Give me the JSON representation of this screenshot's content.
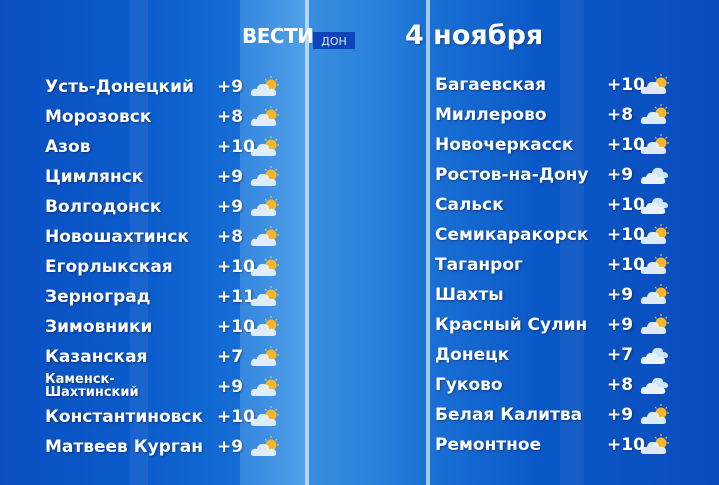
{
  "header": {
    "logo": "ВЕСТИ",
    "logo_sub": "ДОН",
    "date": "4 ноября"
  },
  "left": [
    {
      "city": "Усть-Донецкий",
      "temp": "+9",
      "icon": "partly-cloudy-icon"
    },
    {
      "city": "Морозовск",
      "temp": "+8",
      "icon": "partly-cloudy-icon"
    },
    {
      "city": "Азов",
      "temp": "+10",
      "icon": "partly-cloudy-icon"
    },
    {
      "city": "Цимлянск",
      "temp": "+9",
      "icon": "partly-cloudy-icon"
    },
    {
      "city": "Волгодонск",
      "temp": "+9",
      "icon": "partly-cloudy-icon"
    },
    {
      "city": "Новошахтинск",
      "temp": "+8",
      "icon": "partly-cloudy-icon"
    },
    {
      "city": "Егорлыкская",
      "temp": "+10",
      "icon": "partly-cloudy-icon"
    },
    {
      "city": "Зерноград",
      "temp": "+11",
      "icon": "partly-cloudy-icon"
    },
    {
      "city": "Зимовники",
      "temp": "+10",
      "icon": "partly-cloudy-icon"
    },
    {
      "city": "Казанская",
      "temp": "+7",
      "icon": "partly-cloudy-icon"
    },
    {
      "city": "Каменск-Шахтинский",
      "temp": "+9",
      "icon": "partly-cloudy-icon"
    },
    {
      "city": "Константиновск",
      "temp": "+10",
      "icon": "partly-cloudy-icon"
    },
    {
      "city": "Матвеев Курган",
      "temp": "+9",
      "icon": "partly-cloudy-icon"
    }
  ],
  "right": [
    {
      "city": "Багаевская",
      "temp": "+10",
      "icon": "partly-cloudy-icon"
    },
    {
      "city": "Миллерово",
      "temp": "+8",
      "icon": "partly-cloudy-icon"
    },
    {
      "city": "Новочеркасск",
      "temp": "+10",
      "icon": "partly-cloudy-icon"
    },
    {
      "city": "Ростов-на-Дону",
      "temp": "+9",
      "icon": "cloudy-icon"
    },
    {
      "city": "Сальск",
      "temp": "+10",
      "icon": "cloudy-icon"
    },
    {
      "city": "Семикаракорск",
      "temp": "+10",
      "icon": "partly-cloudy-icon"
    },
    {
      "city": "Таганрог",
      "temp": "+10",
      "icon": "partly-cloudy-icon"
    },
    {
      "city": "Шахты",
      "temp": "+9",
      "icon": "partly-cloudy-icon"
    },
    {
      "city": "Красный Сулин",
      "temp": "+9",
      "icon": "partly-cloudy-icon"
    },
    {
      "city": "Донецк",
      "temp": "+7",
      "icon": "cloudy-icon"
    },
    {
      "city": "Гуково",
      "temp": "+8",
      "icon": "cloudy-icon"
    },
    {
      "city": "Белая Калитва",
      "temp": "+9",
      "icon": "partly-cloudy-icon"
    },
    {
      "city": "Ремонтное",
      "temp": "+10",
      "icon": "partly-cloudy-icon"
    }
  ]
}
